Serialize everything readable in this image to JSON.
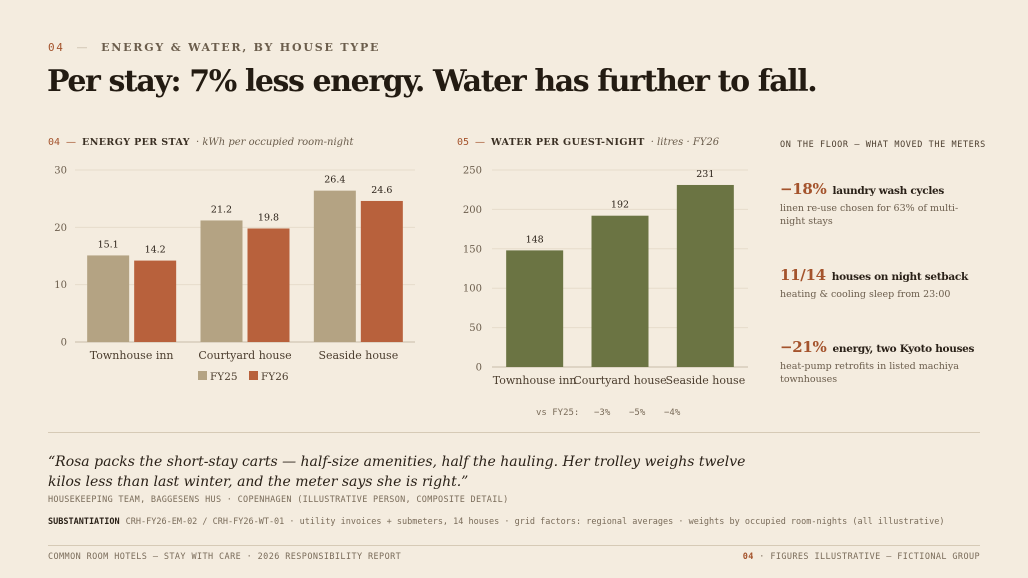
{
  "header": {
    "section_num": "04",
    "dash": "—",
    "section_label": "ENERGY & WATER, BY HOUSE TYPE",
    "headline": "Per stay: 7% less energy. Water has further to fall."
  },
  "colors": {
    "fy25": "#b4a383",
    "fy26": "#b8613c",
    "water": "#6b7443",
    "accent": "#a4532c",
    "grid": "#e6dccb",
    "axis": "#c9bca8"
  },
  "energy_head": {
    "num": "04",
    "dash": "—",
    "title": "ENERGY PER STAY",
    "unit": "· kWh per occupied room-night"
  },
  "water_head": {
    "num": "05",
    "dash": "—",
    "title": "WATER PER GUEST-NIGHT",
    "unit": "· litres · FY26"
  },
  "chart_data": [
    {
      "type": "bar",
      "categories": [
        "Townhouse inn",
        "Courtyard house",
        "Seaside house"
      ],
      "series": [
        {
          "name": "FY25",
          "values": [
            15.1,
            21.2,
            26.4
          ]
        },
        {
          "name": "FY26",
          "values": [
            14.2,
            19.8,
            24.6
          ]
        }
      ],
      "title": "ENERGY PER STAY",
      "ylabel": "kWh per occupied room-night",
      "ylim": [
        0,
        30
      ],
      "yticks": [
        0,
        10,
        20,
        30
      ],
      "legend": "bottom",
      "grid": true
    },
    {
      "type": "bar",
      "categories": [
        "Townhouse inn",
        "Courtyard house",
        "Seaside house"
      ],
      "series": [
        {
          "values": [
            148,
            192,
            231
          ]
        }
      ],
      "title": "WATER PER GUEST-NIGHT",
      "ylabel": "litres · FY26",
      "ylim": [
        0,
        250
      ],
      "yticks": [
        0,
        50,
        100,
        150,
        200,
        250
      ],
      "grid": true
    }
  ],
  "water_note": {
    "label": "vs FY25:",
    "values": [
      "−3%",
      "−5%",
      "−4%"
    ]
  },
  "side": {
    "title": "ON THE FLOOR — WHAT MOVED THE METERS",
    "stats": [
      {
        "big": "−18%",
        "label": "laundry wash cycles",
        "desc": "linen re-use chosen for 63% of multi-night stays"
      },
      {
        "big": "11/14",
        "label": "houses on night setback",
        "desc": "heating & cooling sleep from 23:00"
      },
      {
        "big": "−21%",
        "label": "energy, two Kyoto houses",
        "desc": "heat-pump retrofits in listed machiya townhouses"
      }
    ]
  },
  "quote": {
    "text": "“Rosa packs the short-stay carts — half-size amenities, half the hauling. Her trolley weighs twelve kilos less than last winter, and the meter says she is right.”",
    "attribution": "HOUSEKEEPING TEAM, BAGGESENS HUS · COPENHAGEN (ILLUSTRATIVE PERSON, COMPOSITE DETAIL)"
  },
  "substantiation": {
    "key": "SUBSTANTIATION",
    "text": "CRH-FY26-EM-02 / CRH-FY26-WT-01 · utility invoices + submeters, 14 houses · grid factors: regional averages · weights by occupied room-nights (all illustrative)"
  },
  "footer": {
    "left": "COMMON ROOM HOTELS — STAY WITH CARE · 2026 RESPONSIBILITY REPORT",
    "page": "04",
    "right": "· FIGURES ILLUSTRATIVE — FICTIONAL GROUP"
  }
}
